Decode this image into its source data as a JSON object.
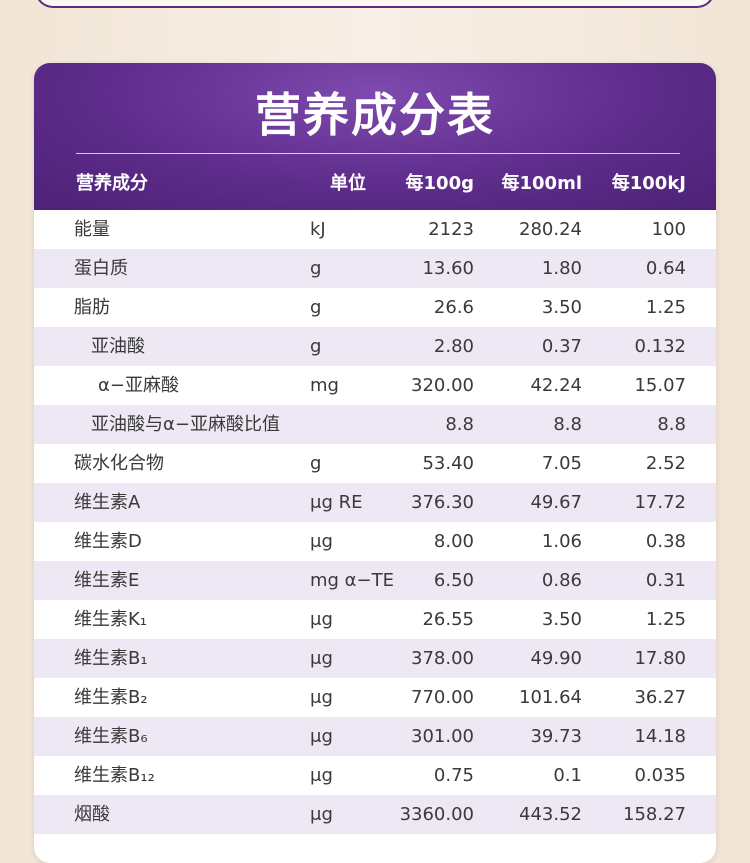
{
  "table": {
    "title": "营养成分表",
    "headers": {
      "name": "营养成分",
      "unit": "单位",
      "per100g": "每100g",
      "per100ml": "每100ml",
      "per100kj": "每100kJ"
    },
    "rows": [
      {
        "name": "能量",
        "unit": "kJ",
        "per100g": "2123",
        "per100ml": "280.24",
        "per100kj": "100",
        "indent": 0
      },
      {
        "name": "蛋白质",
        "unit": "g",
        "per100g": "13.60",
        "per100ml": "1.80",
        "per100kj": "0.64",
        "indent": 0
      },
      {
        "name": "脂肪",
        "unit": "g",
        "per100g": "26.6",
        "per100ml": "3.50",
        "per100kj": "1.25",
        "indent": 0
      },
      {
        "name": "亚油酸",
        "unit": "g",
        "per100g": "2.80",
        "per100ml": "0.37",
        "per100kj": "0.132",
        "indent": 1
      },
      {
        "name": "α−亚麻酸",
        "unit": "mg",
        "per100g": "320.00",
        "per100ml": "42.24",
        "per100kj": "15.07",
        "indent": 2
      },
      {
        "name": "亚油酸与α−亚麻酸比值",
        "unit": "",
        "per100g": "8.8",
        "per100ml": "8.8",
        "per100kj": "8.8",
        "indent": 1
      },
      {
        "name": "碳水化合物",
        "unit": "g",
        "per100g": "53.40",
        "per100ml": "7.05",
        "per100kj": "2.52",
        "indent": 0
      },
      {
        "name": "维生素A",
        "unit": "μg RE",
        "per100g": "376.30",
        "per100ml": "49.67",
        "per100kj": "17.72",
        "indent": 0
      },
      {
        "name": "维生素D",
        "unit": "μg",
        "per100g": "8.00",
        "per100ml": "1.06",
        "per100kj": "0.38",
        "indent": 0
      },
      {
        "name": "维生素E",
        "unit": "mg α−TE",
        "per100g": "6.50",
        "per100ml": "0.86",
        "per100kj": "0.31",
        "indent": 0
      },
      {
        "name": "维生素K₁",
        "unit": "μg",
        "per100g": "26.55",
        "per100ml": "3.50",
        "per100kj": "1.25",
        "indent": 0
      },
      {
        "name": "维生素B₁",
        "unit": "μg",
        "per100g": "378.00",
        "per100ml": "49.90",
        "per100kj": "17.80",
        "indent": 0
      },
      {
        "name": "维生素B₂",
        "unit": "μg",
        "per100g": "770.00",
        "per100ml": "101.64",
        "per100kj": "36.27",
        "indent": 0
      },
      {
        "name": "维生素B₆",
        "unit": "μg",
        "per100g": "301.00",
        "per100ml": "39.73",
        "per100kj": "14.18",
        "indent": 0
      },
      {
        "name": "维生素B₁₂",
        "unit": "μg",
        "per100g": "0.75",
        "per100ml": "0.1",
        "per100kj": "0.035",
        "indent": 0
      },
      {
        "name": "烟酸",
        "unit": "μg",
        "per100g": "3360.00",
        "per100ml": "443.52",
        "per100kj": "158.27",
        "indent": 0
      }
    ]
  }
}
